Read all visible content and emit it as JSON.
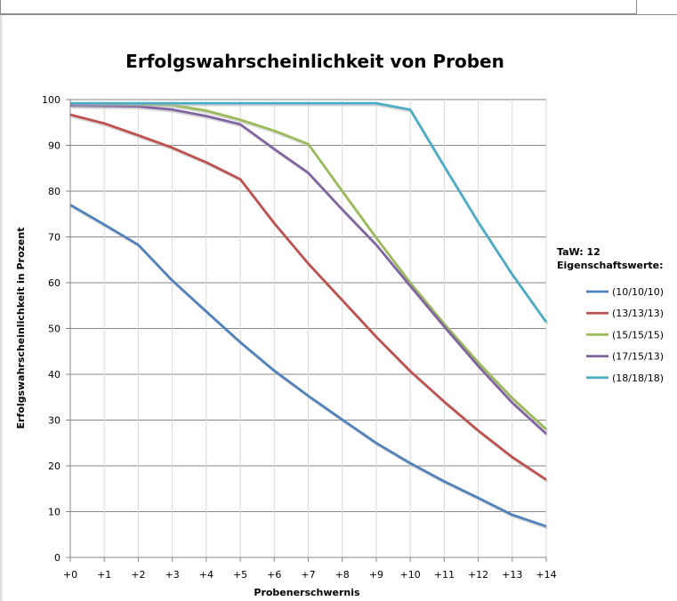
{
  "chart_data": {
    "type": "line",
    "title": "Erfolgswahrscheinlichkeit von  Proben",
    "xlabel": "Probenerschwernis",
    "ylabel": "Erfolgswahrscheinlichkeit  in Prozent",
    "categories": [
      "+0",
      "+1",
      "+2",
      "+3",
      "+4",
      "+5",
      "+6",
      "+7",
      "+8",
      "+9",
      "+10",
      "+11",
      "+12",
      "+13",
      "+14"
    ],
    "ylim": [
      0,
      100
    ],
    "yticks": [
      0,
      10,
      20,
      30,
      40,
      50,
      60,
      70,
      80,
      90,
      100
    ],
    "grid": true,
    "legend_position": "right",
    "legend_header": [
      "TaW: 12",
      "Eigenschaftswerte:"
    ],
    "series": [
      {
        "name": "(10/10/10)",
        "color": "#4f81bd",
        "values": [
          77,
          72.7,
          68.3,
          60.5,
          53.7,
          47,
          40.8,
          35.3,
          30.1,
          25,
          20.6,
          16.6,
          13,
          9.3,
          6.8
        ]
      },
      {
        "name": "(13/13/13)",
        "color": "#c0504d",
        "values": [
          96.7,
          94.8,
          92.2,
          89.5,
          86.3,
          82.6,
          73,
          64.2,
          56.2,
          48.2,
          40.7,
          34,
          27.7,
          21.9,
          17
        ]
      },
      {
        "name": "(15/15/15)",
        "color": "#9bbb59",
        "values": [
          99,
          99,
          99,
          98.8,
          97.6,
          95.6,
          93.2,
          90.3,
          80,
          69.8,
          60,
          51,
          42.6,
          34.8,
          28
        ]
      },
      {
        "name": "(17/15/13)",
        "color": "#8064a2",
        "values": [
          98.7,
          98.6,
          98.5,
          97.8,
          96.4,
          94.6,
          89.2,
          84,
          76,
          68.3,
          59.3,
          50.4,
          41.8,
          33.8,
          27
        ]
      },
      {
        "name": "(18/18/18)",
        "color": "#4bacc6",
        "values": [
          99.2,
          99.2,
          99.2,
          99.2,
          99.2,
          99.2,
          99.2,
          99.2,
          99.2,
          99.2,
          97.8,
          85.4,
          73.2,
          61.8,
          51.4
        ]
      }
    ]
  }
}
